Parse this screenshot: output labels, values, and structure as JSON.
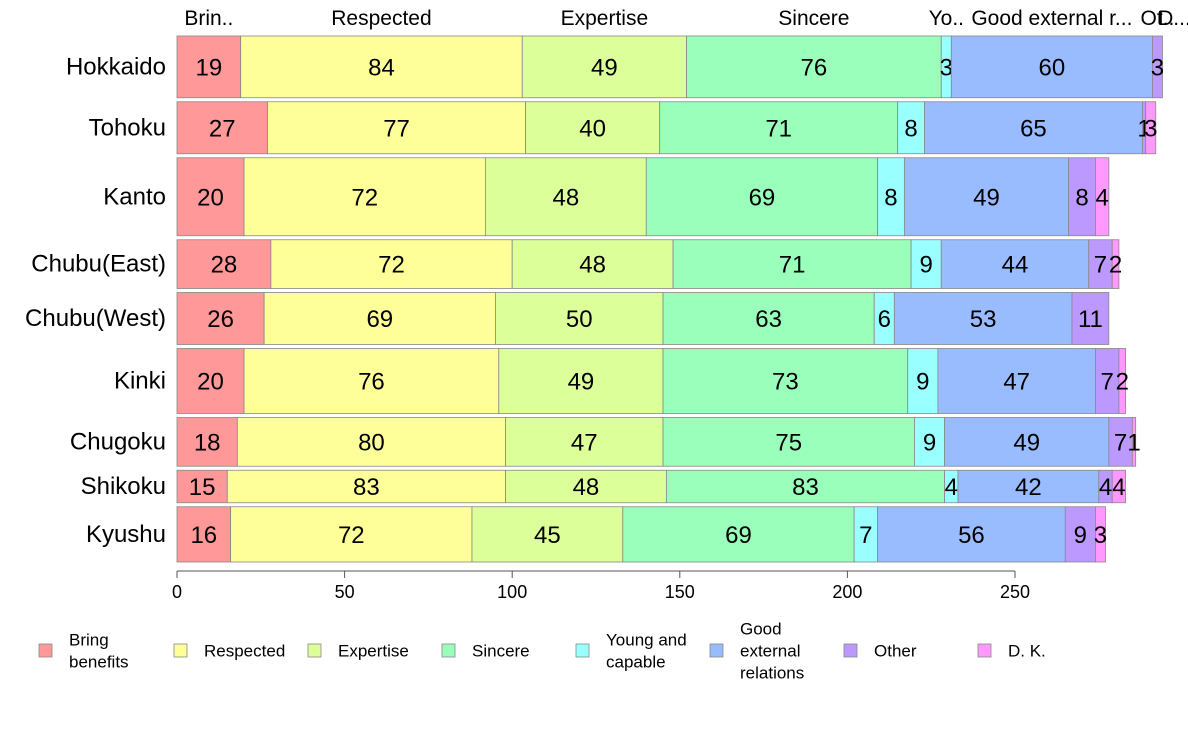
{
  "chart_data": {
    "type": "bar",
    "orientation": "horizontal",
    "stacked": true,
    "categories": [
      "Hokkaido",
      "Tohoku",
      "Kanto",
      "Chubu(East)",
      "Chubu(West)",
      "Kinki",
      "Chugoku",
      "Shikoku",
      "Kyushu"
    ],
    "series": [
      {
        "name": "Bring benefits",
        "color": "#ff9999",
        "values": [
          19,
          27,
          20,
          28,
          26,
          20,
          18,
          15,
          16
        ]
      },
      {
        "name": "Respected",
        "color": "#ffff99",
        "values": [
          84,
          77,
          72,
          72,
          69,
          76,
          80,
          83,
          72
        ]
      },
      {
        "name": "Expertise",
        "color": "#ddff99",
        "values": [
          49,
          40,
          48,
          48,
          50,
          49,
          47,
          48,
          45
        ]
      },
      {
        "name": "Sincere",
        "color": "#99ffbb",
        "values": [
          76,
          71,
          69,
          71,
          63,
          73,
          75,
          83,
          69
        ]
      },
      {
        "name": "Young and capable",
        "color": "#99ffff",
        "values": [
          3,
          8,
          8,
          9,
          6,
          9,
          9,
          4,
          7
        ]
      },
      {
        "name": "Good external relations",
        "color": "#99bbff",
        "values": [
          60,
          65,
          49,
          44,
          53,
          47,
          49,
          42,
          56
        ]
      },
      {
        "name": "Other",
        "color": "#bb99ff",
        "values": [
          3,
          1,
          8,
          7,
          11,
          7,
          7,
          4,
          9
        ]
      },
      {
        "name": "D. K.",
        "color": "#ff99ff",
        "values": [
          0,
          3,
          4,
          2,
          0,
          2,
          1,
          4,
          3
        ]
      }
    ],
    "row_weights": [
      19,
      16,
      24,
      15,
      16,
      20,
      15,
      10,
      17
    ],
    "top_labels": [
      "Brin..",
      "Respected",
      "Expertise",
      "Sincere",
      "Yo..",
      "Good external r...",
      "Ot..",
      "D..."
    ],
    "legend_labels": [
      [
        "Bring",
        "benefits"
      ],
      [
        "Respected"
      ],
      [
        "Expertise"
      ],
      [
        "Sincere"
      ],
      [
        "Young and",
        "capable"
      ],
      [
        "Good",
        "external",
        "relations"
      ],
      [
        "Other"
      ],
      [
        "D. K."
      ]
    ],
    "xlim": [
      0,
      290
    ],
    "xticks": [
      0,
      50,
      100,
      150,
      200,
      250
    ],
    "legend_position": "bottom",
    "grid": false
  }
}
